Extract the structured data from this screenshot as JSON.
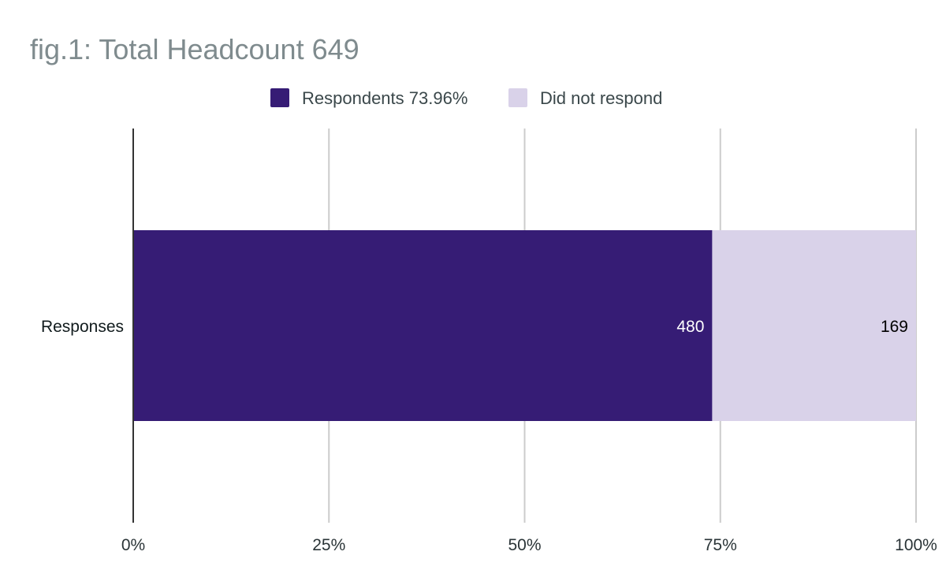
{
  "chart_data": {
    "type": "bar",
    "orientation": "horizontal",
    "stacking": "percent",
    "title": "fig.1: Total Headcount 649",
    "categories": [
      "Responses"
    ],
    "series": [
      {
        "name": "Respondents 73.96%",
        "values": [
          480
        ],
        "color": "#361c75",
        "label_color": "#ffffff"
      },
      {
        "name": "Did not respond",
        "values": [
          169
        ],
        "color": "#d9d2e9",
        "label_color": "#000000"
      }
    ],
    "xlim": [
      0,
      100
    ],
    "x_ticks": [
      "0%",
      "25%",
      "50%",
      "75%",
      "100%"
    ],
    "grid": true,
    "legend": "top-center",
    "data_labels": true
  }
}
